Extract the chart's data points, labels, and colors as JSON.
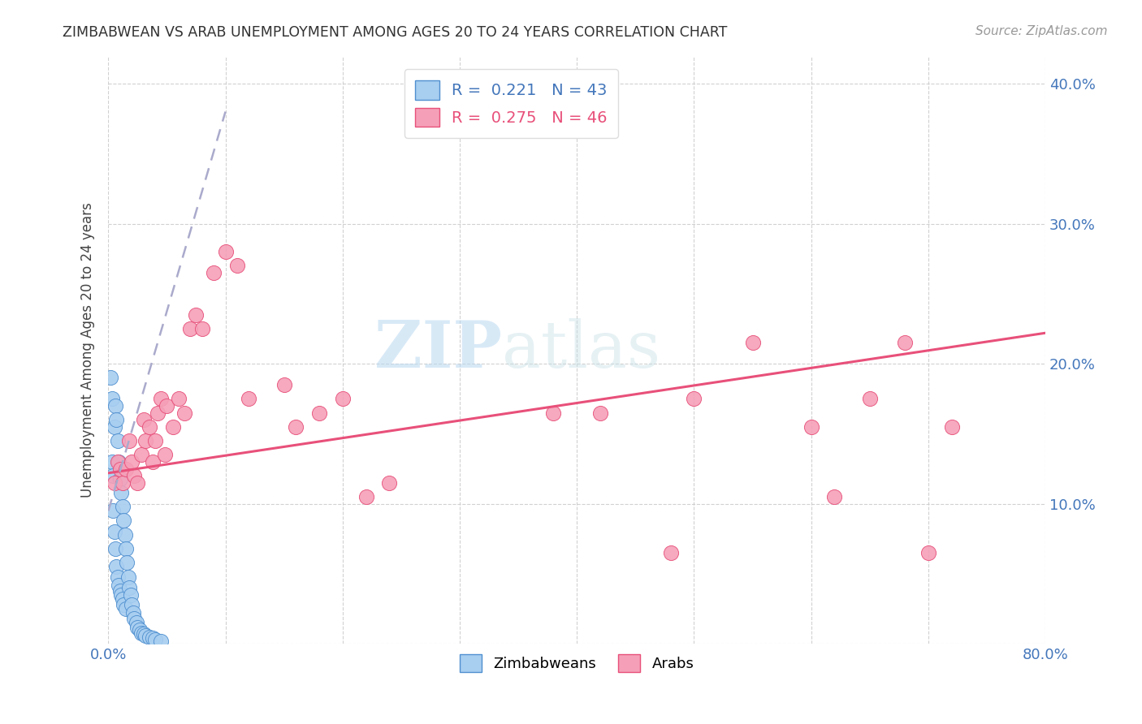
{
  "title": "ZIMBABWEAN VS ARAB UNEMPLOYMENT AMONG AGES 20 TO 24 YEARS CORRELATION CHART",
  "source": "Source: ZipAtlas.com",
  "ylabel": "Unemployment Among Ages 20 to 24 years",
  "xlim": [
    0.0,
    0.8
  ],
  "ylim": [
    0.0,
    0.42
  ],
  "x_ticks": [
    0.0,
    0.1,
    0.2,
    0.3,
    0.4,
    0.5,
    0.6,
    0.7,
    0.8
  ],
  "x_tick_labels": [
    "0.0%",
    "",
    "",
    "",
    "",
    "",
    "",
    "",
    "80.0%"
  ],
  "y_ticks": [
    0.0,
    0.1,
    0.2,
    0.3,
    0.4
  ],
  "y_right_labels": [
    "",
    "10.0%",
    "20.0%",
    "30.0%",
    "40.0%"
  ],
  "zimbabwean_color": "#a8cef0",
  "arab_color": "#f5a0b8",
  "zim_line_color": "#5090d0",
  "arab_line_color": "#e8507a",
  "zim_R": 0.221,
  "zim_N": 43,
  "arab_R": 0.275,
  "arab_N": 46,
  "watermark_zip": "ZIP",
  "watermark_atlas": "atlas",
  "legend_label_zim": "Zimbabweans",
  "legend_label_arab": "Arabs",
  "zimbabwean_x": [
    0.002,
    0.003,
    0.003,
    0.004,
    0.004,
    0.005,
    0.005,
    0.006,
    0.006,
    0.007,
    0.007,
    0.008,
    0.008,
    0.009,
    0.009,
    0.01,
    0.01,
    0.011,
    0.011,
    0.012,
    0.012,
    0.013,
    0.013,
    0.014,
    0.015,
    0.015,
    0.016,
    0.017,
    0.018,
    0.019,
    0.02,
    0.021,
    0.022,
    0.024,
    0.025,
    0.027,
    0.028,
    0.03,
    0.032,
    0.035,
    0.038,
    0.04,
    0.045
  ],
  "zimbabwean_y": [
    0.19,
    0.175,
    0.13,
    0.12,
    0.095,
    0.155,
    0.08,
    0.17,
    0.068,
    0.16,
    0.055,
    0.145,
    0.048,
    0.13,
    0.042,
    0.118,
    0.038,
    0.108,
    0.035,
    0.098,
    0.032,
    0.088,
    0.028,
    0.078,
    0.068,
    0.025,
    0.058,
    0.048,
    0.04,
    0.035,
    0.028,
    0.022,
    0.018,
    0.015,
    0.012,
    0.01,
    0.008,
    0.007,
    0.006,
    0.005,
    0.004,
    0.003,
    0.002
  ],
  "arab_x": [
    0.005,
    0.008,
    0.01,
    0.012,
    0.015,
    0.018,
    0.02,
    0.022,
    0.025,
    0.028,
    0.03,
    0.032,
    0.035,
    0.038,
    0.04,
    0.042,
    0.045,
    0.048,
    0.05,
    0.055,
    0.06,
    0.065,
    0.07,
    0.075,
    0.08,
    0.09,
    0.1,
    0.11,
    0.12,
    0.15,
    0.16,
    0.18,
    0.2,
    0.22,
    0.24,
    0.38,
    0.42,
    0.48,
    0.5,
    0.55,
    0.6,
    0.62,
    0.65,
    0.68,
    0.7,
    0.72
  ],
  "arab_y": [
    0.115,
    0.13,
    0.125,
    0.115,
    0.125,
    0.145,
    0.13,
    0.12,
    0.115,
    0.135,
    0.16,
    0.145,
    0.155,
    0.13,
    0.145,
    0.165,
    0.175,
    0.135,
    0.17,
    0.155,
    0.175,
    0.165,
    0.225,
    0.235,
    0.225,
    0.265,
    0.28,
    0.27,
    0.175,
    0.185,
    0.155,
    0.165,
    0.175,
    0.105,
    0.115,
    0.165,
    0.165,
    0.065,
    0.175,
    0.215,
    0.155,
    0.105,
    0.175,
    0.215,
    0.065,
    0.155
  ],
  "arab_line_x0": 0.0,
  "arab_line_y0": 0.122,
  "arab_line_x1": 0.8,
  "arab_line_y1": 0.222,
  "zim_line_x0": 0.0,
  "zim_line_y0": 0.095,
  "zim_line_x1": 0.1,
  "zim_line_y1": 0.38
}
